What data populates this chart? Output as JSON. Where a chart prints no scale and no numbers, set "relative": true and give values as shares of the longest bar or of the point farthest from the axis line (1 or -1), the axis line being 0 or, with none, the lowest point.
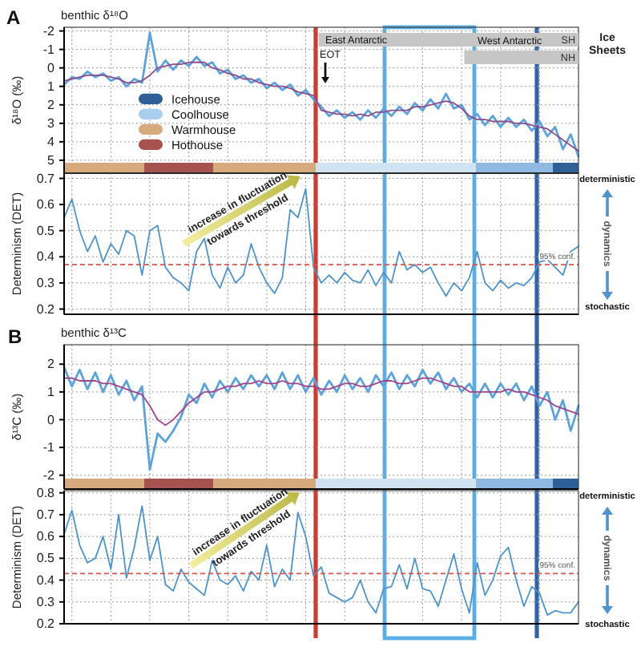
{
  "chart_data": [
    {
      "type": "line",
      "title": "benthic δ¹⁸O",
      "ylabel": "δ¹⁸O (‰)",
      "annotations": [
        "A",
        "EOT",
        "Icehouse",
        "Coolhouse",
        "Warmhouse",
        "Hothouse"
      ],
      "categories": [
        null,
        null,
        null,
        null,
        null,
        null,
        null,
        null,
        null,
        null,
        null,
        null,
        null,
        null,
        null,
        null,
        null,
        null,
        null,
        null,
        null,
        null,
        null,
        null,
        null,
        null,
        null,
        null,
        null,
        null,
        null,
        null,
        null,
        null,
        null,
        null,
        null,
        null,
        null,
        null,
        null,
        null,
        null,
        null,
        null,
        null,
        null,
        null,
        null,
        null,
        null,
        null,
        null,
        null,
        null,
        null,
        null,
        null,
        null,
        null,
        null,
        null,
        null,
        null,
        null,
        null,
        null
      ],
      "ylim": [
        5.7,
        -2.2
      ],
      "yticks": [
        -2,
        -1,
        0,
        1,
        2,
        3,
        4,
        5
      ],
      "grid": true,
      "series": [
        {
          "color": "#5ea3d8",
          "values": [
            0.9,
            0.5,
            0.6,
            0.2,
            0.5,
            0.3,
            0.7,
            0.5,
            1.0,
            0.6,
            0.8,
            -1.9,
            0.2,
            -0.4,
            0.1,
            -0.4,
            -0.1,
            -0.6,
            -0.1,
            -0.3,
            0.3,
            0.1,
            0.6,
            0.4,
            0.8,
            0.6,
            1.1,
            0.8,
            1.2,
            0.9,
            1.5,
            1.2,
            1.7,
            2.1,
            2.6,
            2.3,
            2.7,
            2.4,
            2.8,
            2.3,
            2.7,
            2.2,
            2.6,
            2.1,
            2.5,
            1.9,
            2.3,
            1.7,
            2.2,
            1.4,
            2.2,
            2.0,
            2.8,
            2.5,
            3.1,
            2.6,
            3.2,
            2.7,
            3.2,
            2.8,
            3.4,
            2.9,
            3.7,
            3.2,
            4.4,
            3.6,
            4.8
          ]
        },
        {
          "color": "#8c4c8e",
          "values": [
            0.7,
            0.6,
            0.5,
            0.4,
            0.4,
            0.4,
            0.5,
            0.6,
            0.8,
            0.8,
            0.7,
            0.4,
            0.0,
            -0.1,
            -0.2,
            -0.2,
            -0.3,
            -0.3,
            -0.3,
            0.0,
            0.1,
            0.3,
            0.4,
            0.6,
            0.6,
            0.8,
            0.9,
            1.0,
            1.0,
            1.1,
            1.3,
            1.4,
            1.5,
            2.3,
            2.4,
            2.5,
            2.5,
            2.6,
            2.5,
            2.6,
            2.4,
            2.4,
            2.3,
            2.3,
            2.3,
            2.1,
            2.1,
            2.0,
            1.9,
            1.8,
            1.9,
            2.2,
            2.6,
            2.8,
            2.8,
            2.9,
            2.9,
            2.9,
            3.0,
            3.0,
            3.1,
            3.2,
            3.3,
            3.6,
            3.9,
            4.2,
            4.5
          ]
        }
      ]
    },
    {
      "type": "bar",
      "orientation": "horizontal",
      "relative": true,
      "ylabel": "Ice Sheets",
      "categories": [
        "SH",
        "NH"
      ],
      "values": [
        -1,
        -0.44
      ],
      "color": "#c6c6c6",
      "annotations": [
        "East Antarctic",
        "West Antarctic"
      ]
    },
    {
      "type": "line",
      "ylabel": "Determinism (DET)",
      "annotations": [
        "increase in fluctuation towards threshold",
        "deterministic",
        "dynamics",
        "stochastic"
      ],
      "categories": [
        null,
        null,
        null,
        null,
        null,
        null,
        null,
        null,
        null,
        null,
        null,
        null,
        null,
        null,
        null,
        null,
        null,
        null,
        null,
        null,
        null,
        null,
        null,
        null,
        null,
        null,
        null,
        null,
        null,
        null,
        null,
        null,
        null,
        null,
        null,
        null,
        null,
        null,
        null,
        null,
        null,
        null,
        null,
        null,
        null,
        null,
        null,
        null,
        null,
        null,
        null,
        null,
        null,
        null,
        null,
        null,
        null,
        null,
        null,
        null,
        null,
        null,
        null,
        null,
        null,
        null,
        null
      ],
      "ylim": [
        0.18,
        0.72
      ],
      "yticks": [
        0.2,
        0.3,
        0.4,
        0.5,
        0.6,
        0.7
      ],
      "grid": true,
      "series": [
        {
          "color": "#4f93c9",
          "values": [
            0.55,
            0.62,
            0.5,
            0.42,
            0.48,
            0.38,
            0.45,
            0.41,
            0.5,
            0.48,
            0.33,
            0.5,
            0.52,
            0.36,
            0.32,
            0.3,
            0.27,
            0.42,
            0.47,
            0.33,
            0.28,
            0.36,
            0.3,
            0.33,
            0.45,
            0.36,
            0.3,
            0.26,
            0.32,
            0.58,
            0.55,
            0.66,
            0.36,
            0.3,
            0.33,
            0.3,
            0.34,
            0.31,
            0.3,
            0.35,
            0.29,
            0.34,
            0.3,
            0.42,
            0.35,
            0.37,
            0.34,
            0.36,
            0.3,
            0.25,
            0.3,
            0.27,
            0.32,
            0.42,
            0.3,
            0.27,
            0.31,
            0.28,
            0.3,
            0.29,
            0.32,
            0.38,
            0.39,
            0.36,
            0.33,
            0.42,
            0.44
          ]
        }
      ],
      "ref_lines": [
        {
          "axis": "y",
          "value": 0.37,
          "label": "95% conf.",
          "color": "#d9534f",
          "line_style": "dashed"
        }
      ]
    },
    {
      "type": "line",
      "title": "benthic δ¹³C",
      "ylabel": "δ¹³C (‰)",
      "annotations": [
        "B"
      ],
      "categories": [
        null,
        null,
        null,
        null,
        null,
        null,
        null,
        null,
        null,
        null,
        null,
        null,
        null,
        null,
        null,
        null,
        null,
        null,
        null,
        null,
        null,
        null,
        null,
        null,
        null,
        null,
        null,
        null,
        null,
        null,
        null,
        null,
        null,
        null,
        null,
        null,
        null,
        null,
        null,
        null,
        null,
        null,
        null,
        null,
        null,
        null,
        null,
        null,
        null,
        null,
        null,
        null,
        null,
        null,
        null,
        null,
        null,
        null,
        null,
        null,
        null,
        null,
        null,
        null,
        null,
        null,
        null
      ],
      "ylim": [
        -2.5,
        2.7
      ],
      "yticks": [
        -2,
        -1,
        0,
        1,
        2
      ],
      "grid": true,
      "series": [
        {
          "color": "#5ea3d8",
          "values": [
            1.9,
            1.2,
            1.8,
            1.1,
            1.7,
            1.0,
            1.6,
            0.9,
            1.4,
            0.7,
            1.2,
            -1.8,
            -0.5,
            -0.8,
            -0.4,
            0.1,
            0.9,
            0.6,
            1.3,
            0.8,
            1.4,
            1.0,
            1.5,
            1.1,
            1.6,
            1.2,
            1.6,
            1.1,
            1.7,
            1.1,
            1.6,
            1.0,
            1.5,
            0.9,
            1.4,
            1.0,
            1.6,
            1.1,
            1.5,
            1.0,
            1.6,
            1.2,
            1.7,
            1.1,
            1.6,
            1.2,
            1.8,
            1.3,
            1.7,
            1.1,
            1.5,
            1.0,
            1.3,
            0.8,
            1.3,
            0.8,
            1.3,
            0.9,
            1.3,
            0.7,
            1.2,
            0.5,
            1.0,
            0.0,
            0.7,
            -0.4,
            0.5
          ]
        },
        {
          "color": "#a0438f",
          "values": [
            1.5,
            1.5,
            1.4,
            1.4,
            1.4,
            1.3,
            1.3,
            1.2,
            1.1,
            1.0,
            0.9,
            0.5,
            0.0,
            -0.2,
            0.0,
            0.3,
            0.6,
            0.8,
            1.0,
            1.0,
            1.1,
            1.2,
            1.2,
            1.3,
            1.3,
            1.4,
            1.3,
            1.3,
            1.4,
            1.3,
            1.3,
            1.2,
            1.2,
            1.1,
            1.1,
            1.2,
            1.3,
            1.3,
            1.2,
            1.2,
            1.3,
            1.4,
            1.4,
            1.3,
            1.3,
            1.4,
            1.5,
            1.5,
            1.4,
            1.3,
            1.2,
            1.2,
            1.0,
            1.0,
            1.0,
            1.0,
            1.0,
            1.1,
            1.0,
            1.0,
            0.9,
            0.8,
            0.7,
            0.5,
            0.4,
            0.3,
            0.2
          ]
        }
      ]
    },
    {
      "type": "line",
      "ylabel": "Determinism (DET)",
      "annotations": [
        "increase in fluctuation towards threshold",
        "deterministic",
        "dynamics",
        "stochastic"
      ],
      "categories": [
        null,
        null,
        null,
        null,
        null,
        null,
        null,
        null,
        null,
        null,
        null,
        null,
        null,
        null,
        null,
        null,
        null,
        null,
        null,
        null,
        null,
        null,
        null,
        null,
        null,
        null,
        null,
        null,
        null,
        null,
        null,
        null,
        null,
        null,
        null,
        null,
        null,
        null,
        null,
        null,
        null,
        null,
        null,
        null,
        null,
        null,
        null,
        null,
        null,
        null,
        null,
        null,
        null,
        null,
        null,
        null,
        null,
        null,
        null,
        null,
        null,
        null,
        null,
        null,
        null,
        null,
        null
      ],
      "ylim": [
        0.2,
        0.81
      ],
      "yticks": [
        0.2,
        0.3,
        0.4,
        0.5,
        0.6,
        0.7,
        0.8
      ],
      "grid": true,
      "series": [
        {
          "color": "#4f93c9",
          "values": [
            0.61,
            0.72,
            0.56,
            0.48,
            0.5,
            0.6,
            0.45,
            0.7,
            0.41,
            0.55,
            0.74,
            0.49,
            0.6,
            0.38,
            0.35,
            0.45,
            0.39,
            0.36,
            0.33,
            0.49,
            0.4,
            0.38,
            0.42,
            0.35,
            0.44,
            0.4,
            0.56,
            0.37,
            0.45,
            0.4,
            0.71,
            0.6,
            0.42,
            0.46,
            0.34,
            0.32,
            0.3,
            0.32,
            0.4,
            0.3,
            0.25,
            0.36,
            0.37,
            0.47,
            0.36,
            0.5,
            0.36,
            0.35,
            0.28,
            0.4,
            0.52,
            0.36,
            0.25,
            0.48,
            0.33,
            0.4,
            0.51,
            0.55,
            0.4,
            0.28,
            0.37,
            0.34,
            0.24,
            0.26,
            0.25,
            0.25,
            0.3
          ]
        }
      ],
      "ref_lines": [
        {
          "axis": "y",
          "value": 0.43,
          "label": "95% conf.",
          "color": "#d9534f",
          "line_style": "dashed"
        }
      ]
    }
  ]
}
